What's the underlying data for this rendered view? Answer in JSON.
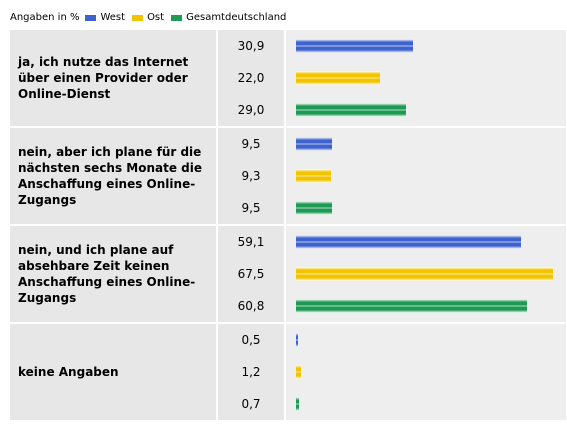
{
  "legend": {
    "lead": "Angaben in %",
    "items": [
      {
        "name": "West",
        "color": "#3f63cc"
      },
      {
        "name": "Ost",
        "color": "#f2c400"
      },
      {
        "name": "Gesamtdeutschland",
        "color": "#1f9a55"
      }
    ]
  },
  "chart_data": {
    "type": "bar",
    "orientation": "horizontal",
    "title": "",
    "unit": "Angaben in %",
    "xlim": [
      0,
      70
    ],
    "legend_position": "top-left",
    "series": [
      {
        "name": "West",
        "color": "#3f63cc"
      },
      {
        "name": "Ost",
        "color": "#f2c400"
      },
      {
        "name": "Gesamtdeutschland",
        "color": "#1f9a55"
      }
    ],
    "groups": [
      {
        "label": "ja, ich nutze das Internet über einen Provider oder Online-Dienst",
        "values": [
          30.9,
          22.0,
          29.0
        ],
        "labels": [
          "30,9",
          "22,0",
          "29,0"
        ]
      },
      {
        "label": "nein, aber ich plane für die nächsten sechs Monate die Anschaffung eines Online-Zugangs",
        "values": [
          9.5,
          9.3,
          9.5
        ],
        "labels": [
          "9,5",
          "9,3",
          "9,5"
        ]
      },
      {
        "label": "nein, und ich plane auf absehbare Zeit keinen Anschaffung eines Online-Zugangs",
        "values": [
          59.1,
          67.5,
          60.8
        ],
        "labels": [
          "59,1",
          "67,5",
          "60,8"
        ]
      },
      {
        "label": "keine Angaben",
        "values": [
          0.5,
          1.2,
          0.7
        ],
        "labels": [
          "0,5",
          "1,2",
          "0,7"
        ]
      }
    ]
  }
}
